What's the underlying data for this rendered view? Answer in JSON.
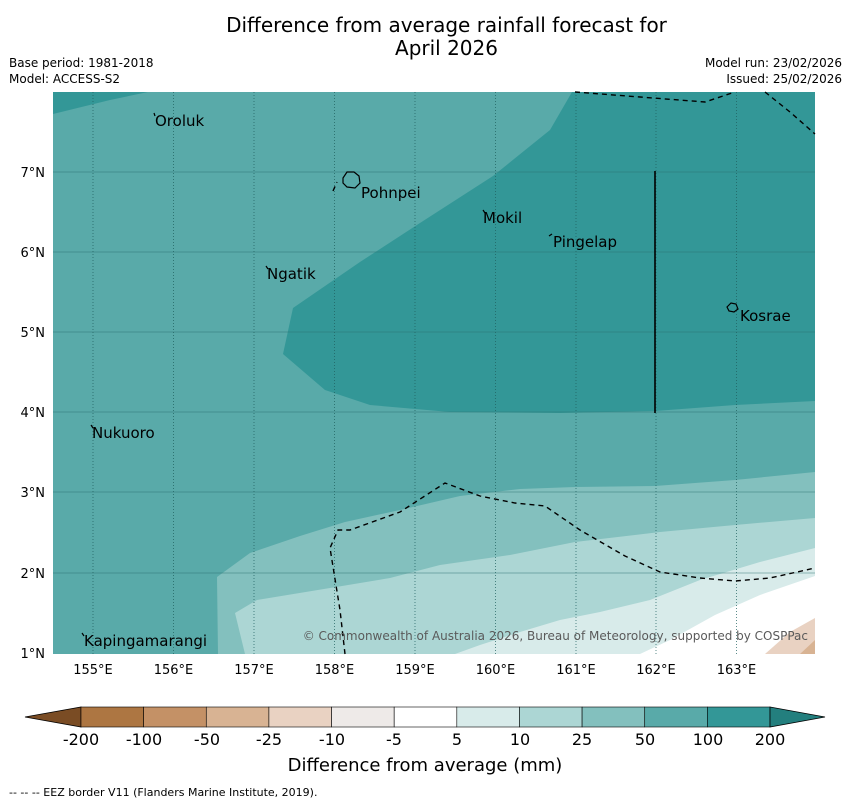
{
  "title_line1": "Difference from average rainfall forecast for",
  "title_line2": "April 2026",
  "meta": {
    "base_period": "Base period: 1981-2018",
    "model": "Model: ACCESS-S2",
    "model_run": "Model run: 23/02/2026",
    "issued": "Issued: 25/02/2026"
  },
  "map": {
    "lon_labels": [
      "155°E",
      "156°E",
      "157°E",
      "158°E",
      "159°E",
      "160°E",
      "161°E",
      "162°E",
      "163°E"
    ],
    "lat_labels": [
      "7°N",
      "6°N",
      "5°N",
      "4°N",
      "3°N",
      "2°N",
      "1°N"
    ],
    "places": [
      {
        "name": "Oroluk"
      },
      {
        "name": "Pohnpei"
      },
      {
        "name": "Mokil"
      },
      {
        "name": "Pingelap"
      },
      {
        "name": "Ngatik"
      },
      {
        "name": "Kosrae"
      },
      {
        "name": "Nukuoro"
      },
      {
        "name": "Kapingamarangi"
      }
    ],
    "copyright": "© Commonwealth of Australia 2026, Bureau of Meteorology, supported by COSPPac"
  },
  "colorbar": {
    "labels": [
      "-200",
      "-100",
      "-50",
      "-25",
      "-10",
      "-5",
      "5",
      "10",
      "25",
      "50",
      "100",
      "200"
    ],
    "colors": [
      "#ad7642",
      "#c49166",
      "#d8b393",
      "#e9d2c2",
      "#eeeae8",
      "#ffffff",
      "#d8ebea",
      "#acd6d4",
      "#83c0be",
      "#59aaa9",
      "#339797",
      "#237f7e",
      "#7a4c24"
    ],
    "title": "Difference from average (mm)"
  },
  "footer": "--  --  -- EEZ border V11 (Flanders Marine Institute, 2019)."
}
